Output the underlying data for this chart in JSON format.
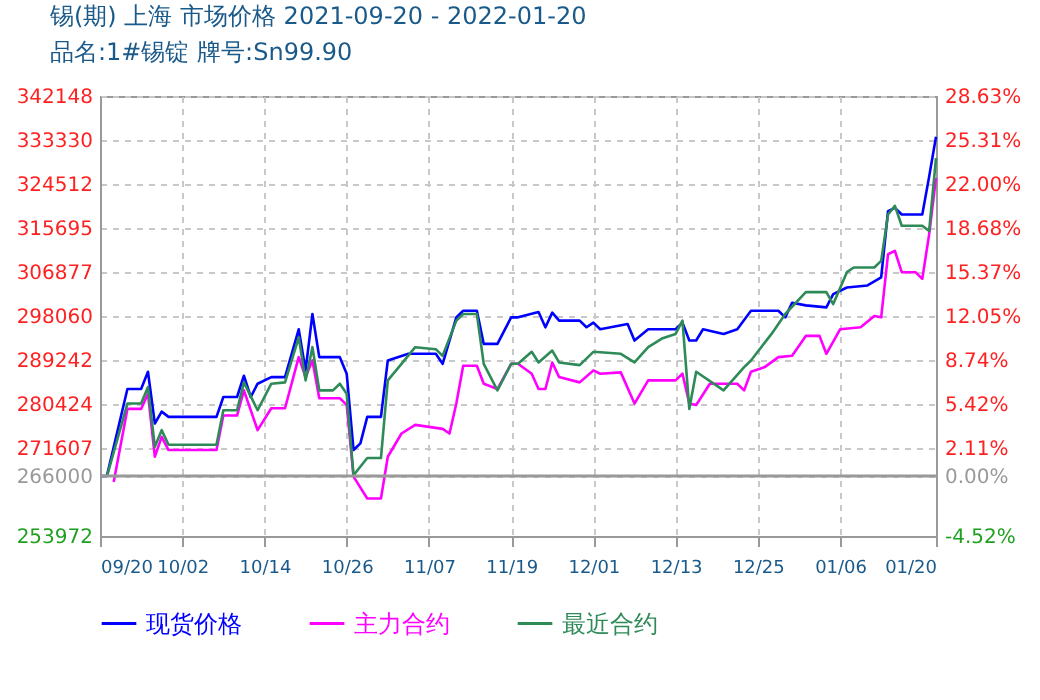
{
  "chart_data": {
    "type": "line",
    "title": "锡(期) 上海 市场价格 2021-09-20 - 2022-01-20",
    "subtitle": "品名:1#锡锭 牌号:Sn99.90",
    "xlim": [
      "2021-09-20",
      "2022-01-20"
    ],
    "xticks": [
      {
        "value": "2021-09-20",
        "label": "09/20"
      },
      {
        "value": "2021-10-02",
        "label": "10/02"
      },
      {
        "value": "2021-10-14",
        "label": "10/14"
      },
      {
        "value": "2021-10-26",
        "label": "10/26"
      },
      {
        "value": "2021-11-07",
        "label": "11/07"
      },
      {
        "value": "2021-11-19",
        "label": "11/19"
      },
      {
        "value": "2021-12-01",
        "label": "12/01"
      },
      {
        "value": "2021-12-13",
        "label": "12/13"
      },
      {
        "value": "2021-12-25",
        "label": "12/25"
      },
      {
        "value": "2022-01-06",
        "label": "01/06"
      },
      {
        "value": "2022-01-20",
        "label": "01/20"
      }
    ],
    "ylim": [
      253972,
      342148
    ],
    "yticks": [
      253972,
      266000,
      271607,
      280424,
      289242,
      298060,
      306877,
      315695,
      324512,
      333330,
      342148
    ],
    "y2lim": [
      -4.52,
      28.63
    ],
    "y2ticks": [
      {
        "value": -4.52,
        "label": "-4.52%"
      },
      {
        "value": 0,
        "label": "0.00%"
      },
      {
        "value": 2.11,
        "label": "2.11%"
      },
      {
        "value": 5.42,
        "label": "5.42%"
      },
      {
        "value": 8.74,
        "label": "8.74%"
      },
      {
        "value": 12.05,
        "label": "12.05%"
      },
      {
        "value": 15.37,
        "label": "15.37%"
      },
      {
        "value": 18.68,
        "label": "18.68%"
      },
      {
        "value": 22.0,
        "label": "22.00%"
      },
      {
        "value": 25.31,
        "label": "25.31%"
      },
      {
        "value": 28.63,
        "label": "28.63%"
      }
    ],
    "grid": true,
    "legend": "bottom",
    "marker": "none",
    "line_style": "solid",
    "ref_lines": [
      {
        "axis": "y",
        "value": 266000,
        "color": "#999999"
      }
    ],
    "series": [
      {
        "name": "现货价格",
        "color": "#0000ff",
        "x": [
          "2021-09-20",
          "2021-09-21",
          "2021-09-24",
          "2021-09-26",
          "2021-09-27",
          "2021-09-28",
          "2021-09-29",
          "2021-09-30",
          "2021-10-07",
          "2021-10-08",
          "2021-10-10",
          "2021-10-11",
          "2021-10-12",
          "2021-10-13",
          "2021-10-15",
          "2021-10-17",
          "2021-10-19",
          "2021-10-20",
          "2021-10-21",
          "2021-10-22",
          "2021-10-25",
          "2021-10-26",
          "2021-10-27",
          "2021-10-28",
          "2021-10-29",
          "2021-10-31",
          "2021-11-01",
          "2021-11-04",
          "2021-11-08",
          "2021-11-09",
          "2021-11-11",
          "2021-11-12",
          "2021-11-14",
          "2021-11-15",
          "2021-11-17",
          "2021-11-19",
          "2021-11-20",
          "2021-11-23",
          "2021-11-24",
          "2021-11-25",
          "2021-11-26",
          "2021-11-29",
          "2021-11-30",
          "2021-12-01",
          "2021-12-02",
          "2021-12-06",
          "2021-12-07",
          "2021-12-09",
          "2021-12-13",
          "2021-12-14",
          "2021-12-15",
          "2021-12-16",
          "2021-12-17",
          "2021-12-20",
          "2021-12-22",
          "2021-12-24",
          "2021-12-28",
          "2021-12-29",
          "2021-12-30",
          "2022-01-01",
          "2022-01-04",
          "2022-01-05",
          "2022-01-07",
          "2022-01-10",
          "2022-01-12",
          "2022-01-13",
          "2022-01-14",
          "2022-01-15",
          "2022-01-18",
          "2022-01-19",
          "2022-01-20"
        ],
        "values": [
          266000,
          266000,
          283430,
          283430,
          286890,
          276510,
          278900,
          277840,
          277840,
          281830,
          281830,
          286090,
          281830,
          284490,
          285820,
          285820,
          295400,
          287150,
          298460,
          289810,
          289810,
          286490,
          271200,
          272530,
          277840,
          277840,
          289150,
          290480,
          290480,
          288480,
          297790,
          299120,
          299120,
          292470,
          292470,
          297790,
          297790,
          298860,
          295800,
          298730,
          297130,
          297130,
          295800,
          296730,
          295400,
          296460,
          293140,
          295400,
          295400,
          296730,
          293140,
          293140,
          295400,
          294470,
          295400,
          299120,
          299120,
          297790,
          300720,
          300190,
          299790,
          302450,
          303780,
          304180,
          305780,
          319080,
          319740,
          318410,
          318410,
          325990,
          334000
        ]
      },
      {
        "name": "主力合约",
        "color": "#ff00ff",
        "x": [
          "2021-09-22",
          "2021-09-24",
          "2021-09-26",
          "2021-09-27",
          "2021-09-28",
          "2021-09-29",
          "2021-09-30",
          "2021-10-07",
          "2021-10-08",
          "2021-10-10",
          "2021-10-11",
          "2021-10-13",
          "2021-10-15",
          "2021-10-17",
          "2021-10-19",
          "2021-10-20",
          "2021-10-21",
          "2021-10-22",
          "2021-10-25",
          "2021-10-26",
          "2021-10-27",
          "2021-10-29",
          "2021-10-31",
          "2021-11-01",
          "2021-11-03",
          "2021-11-05",
          "2021-11-09",
          "2021-11-10",
          "2021-11-11",
          "2021-11-12",
          "2021-11-14",
          "2021-11-15",
          "2021-11-17",
          "2021-11-19",
          "2021-11-20",
          "2021-11-22",
          "2021-11-23",
          "2021-11-24",
          "2021-11-25",
          "2021-11-26",
          "2021-11-29",
          "2021-12-01",
          "2021-12-02",
          "2021-12-05",
          "2021-12-07",
          "2021-12-09",
          "2021-12-13",
          "2021-12-14",
          "2021-12-15",
          "2021-12-16",
          "2021-12-18",
          "2021-12-22",
          "2021-12-23",
          "2021-12-24",
          "2021-12-26",
          "2021-12-28",
          "2021-12-30",
          "2022-01-01",
          "2022-01-03",
          "2022-01-04",
          "2022-01-06",
          "2022-01-09",
          "2022-01-11",
          "2022-01-12",
          "2022-01-13",
          "2022-01-14",
          "2022-01-15",
          "2022-01-17",
          "2022-01-18",
          "2022-01-19",
          "2022-01-20"
        ],
        "values": [
          264810,
          279440,
          279440,
          282500,
          269860,
          273850,
          271200,
          271200,
          278110,
          278110,
          283160,
          275180,
          279570,
          279570,
          289810,
          285820,
          289150,
          281570,
          281570,
          280240,
          265870,
          261480,
          261480,
          269860,
          274510,
          276240,
          275440,
          274510,
          280510,
          288090,
          288090,
          284490,
          283430,
          288480,
          288480,
          286490,
          283430,
          283430,
          288750,
          285820,
          284760,
          287150,
          286490,
          286760,
          280510,
          285160,
          285160,
          286490,
          280510,
          280240,
          284490,
          284490,
          283160,
          286890,
          287820,
          289810,
          290080,
          294070,
          294070,
          290480,
          295400,
          295800,
          298060,
          297790,
          310430,
          311100,
          306840,
          306840,
          305510,
          314420,
          325720
        ]
      },
      {
        "name": "最近合约",
        "color": "#2e8b57",
        "x": [
          "2021-09-21",
          "2021-09-24",
          "2021-09-26",
          "2021-09-27",
          "2021-09-28",
          "2021-09-29",
          "2021-09-30",
          "2021-10-07",
          "2021-10-08",
          "2021-10-10",
          "2021-10-11",
          "2021-10-13",
          "2021-10-15",
          "2021-10-17",
          "2021-10-19",
          "2021-10-20",
          "2021-10-21",
          "2021-10-22",
          "2021-10-24",
          "2021-10-25",
          "2021-10-26",
          "2021-10-27",
          "2021-10-29",
          "2021-10-31",
          "2021-11-01",
          "2021-11-03",
          "2021-11-05",
          "2021-11-08",
          "2021-11-09",
          "2021-11-11",
          "2021-11-12",
          "2021-11-14",
          "2021-11-15",
          "2021-11-17",
          "2021-11-19",
          "2021-11-20",
          "2021-11-22",
          "2021-11-23",
          "2021-11-25",
          "2021-11-26",
          "2021-11-29",
          "2021-12-01",
          "2021-12-05",
          "2021-12-07",
          "2021-12-09",
          "2021-12-11",
          "2021-12-13",
          "2021-12-14",
          "2021-12-15",
          "2021-12-16",
          "2021-12-20",
          "2021-12-23",
          "2021-12-24",
          "2021-12-27",
          "2021-12-29",
          "2022-01-01",
          "2022-01-04",
          "2022-01-05",
          "2022-01-07",
          "2022-01-08",
          "2022-01-11",
          "2022-01-12",
          "2022-01-13",
          "2022-01-14",
          "2022-01-15",
          "2022-01-18",
          "2022-01-19",
          "2022-01-20"
        ],
        "values": [
          265870,
          280510,
          280510,
          283830,
          271860,
          275180,
          272260,
          272260,
          279170,
          279170,
          284760,
          279170,
          284490,
          284760,
          293800,
          285160,
          291810,
          283160,
          283160,
          284490,
          282500,
          266140,
          269600,
          269600,
          285160,
          288480,
          291810,
          291410,
          290080,
          297130,
          298460,
          298460,
          288480,
          283160,
          288480,
          288480,
          290880,
          288750,
          291140,
          288750,
          288220,
          290880,
          290480,
          288750,
          291810,
          293540,
          294470,
          297130,
          279440,
          286890,
          283160,
          287820,
          289150,
          294470,
          298460,
          302850,
          302850,
          300450,
          306840,
          307770,
          307770,
          309100,
          318410,
          320140,
          316150,
          316150,
          315090,
          329710
        ]
      }
    ]
  }
}
